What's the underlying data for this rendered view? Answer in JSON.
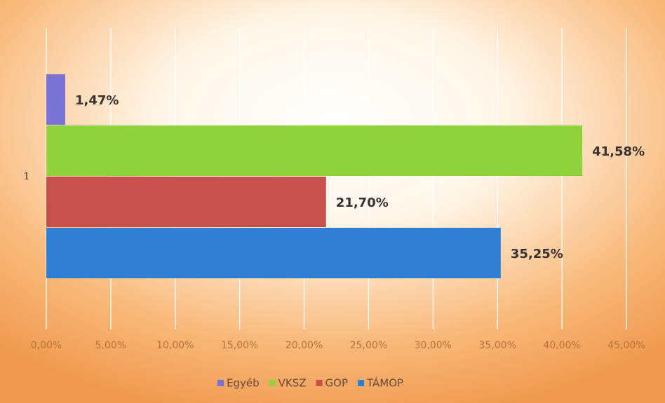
{
  "chart_data": {
    "type": "bar",
    "orientation": "horizontal",
    "categories": [
      "1"
    ],
    "series": [
      {
        "name": "Egyéb",
        "color": "#7b72d6",
        "values": [
          1.47
        ],
        "value_labels": [
          "1,47%"
        ]
      },
      {
        "name": "VKSZ",
        "color": "#8fd23c",
        "values": [
          41.58
        ],
        "value_labels": [
          "41,58%"
        ]
      },
      {
        "name": "GOP",
        "color": "#c8504a",
        "values": [
          21.7
        ],
        "value_labels": [
          "21,70%"
        ]
      },
      {
        "name": "TÁMOP",
        "color": "#2f7fd4",
        "values": [
          35.25
        ],
        "value_labels": [
          "35,25%"
        ]
      }
    ],
    "xlim": [
      0,
      45
    ],
    "xticks": [
      {
        "value": 0,
        "label": "0,00%"
      },
      {
        "value": 5,
        "label": "5,00%"
      },
      {
        "value": 10,
        "label": "10,00%"
      },
      {
        "value": 15,
        "label": "15,00%"
      },
      {
        "value": 20,
        "label": "20,00%"
      },
      {
        "value": 25,
        "label": "25,00%"
      },
      {
        "value": 30,
        "label": "30,00%"
      },
      {
        "value": 35,
        "label": "35,00%"
      },
      {
        "value": 40,
        "label": "40,00%"
      },
      {
        "value": 45,
        "label": "45,00%"
      }
    ],
    "grid": true,
    "legend": "bottom"
  }
}
